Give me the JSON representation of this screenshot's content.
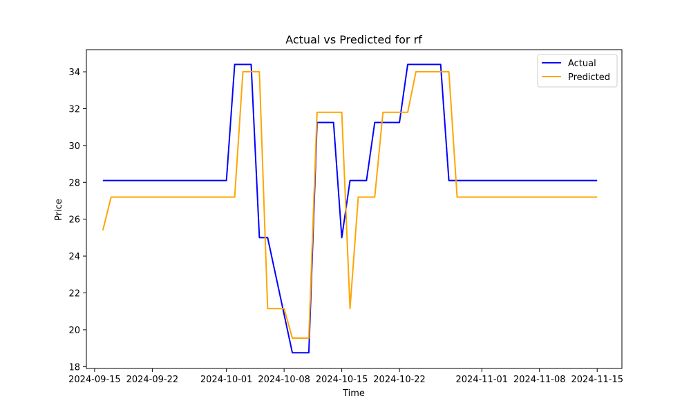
{
  "chart_data": {
    "type": "line",
    "title": "Actual vs Predicted for rf",
    "xlabel": "Time",
    "ylabel": "Price",
    "x_ticks": [
      "2024-09-15",
      "2024-09-22",
      "2024-10-01",
      "2024-10-08",
      "2024-10-15",
      "2024-10-22",
      "2024-11-01",
      "2024-11-08",
      "2024-11-15"
    ],
    "y_ticks": [
      18,
      20,
      22,
      24,
      26,
      28,
      30,
      32,
      34
    ],
    "xlim": [
      "2024-09-14",
      "2024-11-18"
    ],
    "ylim": [
      17.9,
      35.2
    ],
    "grid": false,
    "legend_position": "upper right",
    "series": [
      {
        "name": "Actual",
        "color": "#0000ff",
        "points": [
          [
            "2024-09-16",
            28.1
          ],
          [
            "2024-10-01",
            28.1
          ],
          [
            "2024-10-02",
            34.4
          ],
          [
            "2024-10-04",
            34.4
          ],
          [
            "2024-10-05",
            25.0
          ],
          [
            "2024-10-06",
            25.0
          ],
          [
            "2024-10-09",
            18.75
          ],
          [
            "2024-10-11",
            18.75
          ],
          [
            "2024-10-12",
            31.25
          ],
          [
            "2024-10-14",
            31.25
          ],
          [
            "2024-10-15",
            25.0
          ],
          [
            "2024-10-16",
            28.1
          ],
          [
            "2024-10-18",
            28.1
          ],
          [
            "2024-10-19",
            31.25
          ],
          [
            "2024-10-22",
            31.25
          ],
          [
            "2024-10-23",
            34.4
          ],
          [
            "2024-10-27",
            34.4
          ],
          [
            "2024-10-28",
            28.1
          ],
          [
            "2024-11-15",
            28.1
          ]
        ]
      },
      {
        "name": "Predicted",
        "color": "#ffa500",
        "points": [
          [
            "2024-09-16",
            25.4
          ],
          [
            "2024-09-17",
            27.2
          ],
          [
            "2024-10-02",
            27.2
          ],
          [
            "2024-10-03",
            34.0
          ],
          [
            "2024-10-05",
            34.0
          ],
          [
            "2024-10-06",
            21.15
          ],
          [
            "2024-10-08",
            21.15
          ],
          [
            "2024-10-09",
            19.55
          ],
          [
            "2024-10-11",
            19.55
          ],
          [
            "2024-10-12",
            31.8
          ],
          [
            "2024-10-15",
            31.8
          ],
          [
            "2024-10-16",
            21.15
          ],
          [
            "2024-10-17",
            27.2
          ],
          [
            "2024-10-19",
            27.2
          ],
          [
            "2024-10-20",
            31.8
          ],
          [
            "2024-10-23",
            31.8
          ],
          [
            "2024-10-24",
            34.0
          ],
          [
            "2024-10-28",
            34.0
          ],
          [
            "2024-10-29",
            27.2
          ],
          [
            "2024-11-15",
            27.2
          ]
        ]
      }
    ]
  }
}
